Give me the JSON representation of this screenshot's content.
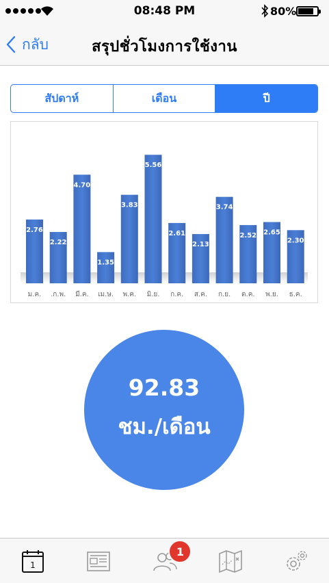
{
  "status_bar": {
    "time": "08:48 PM",
    "battery_percent": "80%",
    "battery_level": 0.8,
    "icons": [
      "signal-dots-icon",
      "wifi-icon",
      "bluetooth-icon",
      "battery-icon"
    ]
  },
  "nav": {
    "back_label": "กลับ",
    "title": "สรุปชั่วโมงการใช้งาน"
  },
  "segments": [
    {
      "label": "สัปดาห์",
      "active": false
    },
    {
      "label": "เดือน",
      "active": false
    },
    {
      "label": "ปี",
      "active": true
    }
  ],
  "chart_data": {
    "type": "bar",
    "categories": [
      "ม.ค.",
      ".ก.พ.",
      "มี.ค.",
      "เม.ษ.",
      "พ.ค.",
      "มิ.ย.",
      "ก.ค.",
      "ส.ค.",
      "ก.ย.",
      "ต.ค.",
      "พ.ย.",
      "ธ.ค."
    ],
    "values": [
      2.76,
      2.22,
      4.7,
      1.35,
      3.83,
      5.56,
      2.61,
      2.13,
      3.74,
      2.52,
      2.65,
      2.3
    ],
    "value_labels": [
      "2.76",
      "2.22",
      "4.70",
      "1.35",
      "3.83",
      "5.56",
      "2.61",
      "2.13",
      "3.74",
      "2.52",
      "2.65",
      "2.30"
    ],
    "title": "",
    "xlabel": "",
    "ylabel": "",
    "ylim": [
      0,
      6.1
    ],
    "grid": false,
    "bar_color": "#4472c4"
  },
  "summary": {
    "value": "92.83",
    "unit": "ชม./เดือน",
    "color": "#4a86e8"
  },
  "tab_bar": {
    "tabs": [
      {
        "icon": "calendar-icon",
        "calendar_day": "1"
      },
      {
        "icon": "news-icon"
      },
      {
        "icon": "users-icon",
        "badge": "1"
      },
      {
        "icon": "map-icon"
      },
      {
        "icon": "settings-gear-icon"
      }
    ]
  },
  "accent_color": "#2e7cf6",
  "badge_color": "#e0362b"
}
